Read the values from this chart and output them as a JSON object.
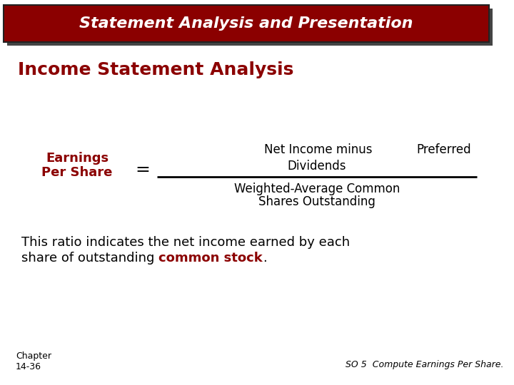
{
  "title_banner_text": "Statement Analysis and Presentation",
  "title_banner_bg": "#8B0000",
  "title_banner_fg": "#FFFFFF",
  "section_title": "Income Statement Analysis",
  "section_title_color": "#8B0000",
  "left_label_line1": "Earnings",
  "left_label_line2": "Per Share",
  "left_label_color": "#8B0000",
  "equals_sign": "=",
  "numerator_part1": "Net Income minus",
  "numerator_part2": "Preferred",
  "numerator_part3": "Dividends",
  "denominator_line1": "Weighted-Average Common",
  "denominator_line2": "Shares Outstanding",
  "body_text_line1": "This ratio indicates the net income earned by each",
  "body_text_line2_pre": "share of outstanding ",
  "body_highlight": "common stock",
  "body_end": ".",
  "body_color": "#000000",
  "highlight_color": "#8B0000",
  "footer_left_line1": "Chapter",
  "footer_left_line2": "14-36",
  "footer_right": "SO 5  Compute Earnings Per Share.",
  "footer_color": "#000000",
  "bg_color": "#FFFFFF",
  "banner_shadow_color": "#444444",
  "banner_border_color": "#222222"
}
